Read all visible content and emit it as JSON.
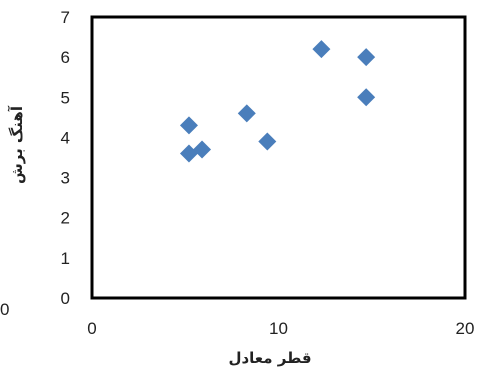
{
  "chart_data": {
    "type": "scatter",
    "xlabel": "قطر معادل",
    "ylabel": "آهنگ برش",
    "xlim": [
      0,
      20
    ],
    "ylim": [
      0,
      7
    ],
    "xticks": [
      "0",
      "10",
      "20"
    ],
    "yticks": [
      "0",
      "1",
      "2",
      "3",
      "4",
      "5",
      "6",
      "7"
    ],
    "grid": false,
    "legend": "none",
    "marker": "diamond",
    "marker_color": "#4a7ebb",
    "points": [
      {
        "x": 5.2,
        "y": 4.3
      },
      {
        "x": 5.2,
        "y": 3.6
      },
      {
        "x": 5.9,
        "y": 3.7
      },
      {
        "x": 8.3,
        "y": 4.6
      },
      {
        "x": 9.4,
        "y": 3.9
      },
      {
        "x": 12.3,
        "y": 6.2
      },
      {
        "x": 14.7,
        "y": 6.0
      },
      {
        "x": 14.7,
        "y": 5.0
      }
    ]
  },
  "stray_label": "0"
}
